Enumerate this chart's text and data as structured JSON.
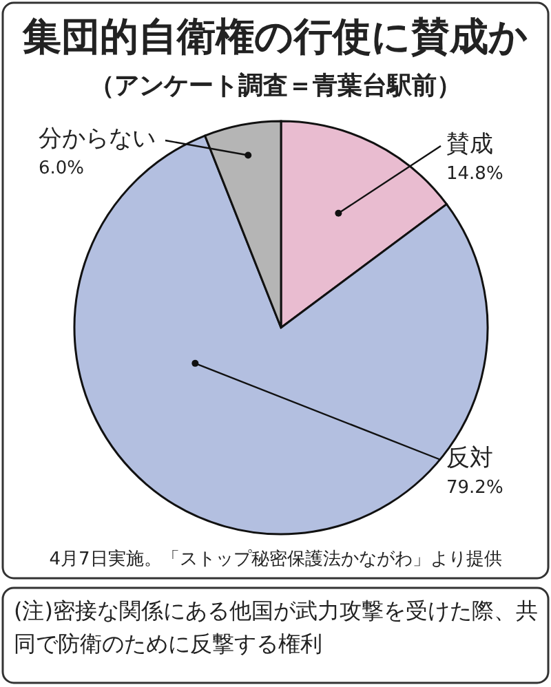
{
  "chart_data": {
    "type": "pie",
    "title": "集団的自衛権の行使に賛成か",
    "subtitle": "（アンケート調査＝青葉台駅前）",
    "categories": [
      "賛成",
      "反対",
      "分からない"
    ],
    "values": [
      14.8,
      79.2,
      6.0
    ],
    "value_labels": [
      "14.8%",
      "79.2%",
      "6.0%"
    ],
    "colors": [
      "#e9bcd0",
      "#b3bfe0",
      "#b5b5b5"
    ],
    "annotations": [
      "4月7日実施。「ストップ秘密保護法かながわ」より提供",
      "(注)密接な関係にある他国が武力攻撃を受けた際、共同で防衛のために反撃する権利"
    ]
  }
}
